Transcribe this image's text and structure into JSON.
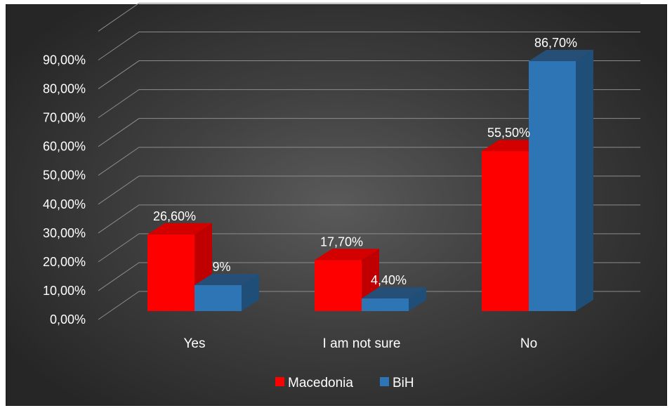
{
  "chart_data": {
    "type": "bar",
    "title": "",
    "categories": [
      "Yes",
      "I am  not sure",
      "No"
    ],
    "series": [
      {
        "name": "Macedonia",
        "values": [
          26.6,
          17.7,
          55.5
        ],
        "labels": [
          "26,60%",
          "17,70%",
          "55,50%"
        ],
        "color": "#ff0000"
      },
      {
        "name": "BiH",
        "values": [
          9,
          4.4,
          86.7
        ],
        "labels": [
          "9%",
          "4,40%",
          "86,70%"
        ],
        "color": "#2e75b6"
      }
    ],
    "y_ticks": [
      "0,00%",
      "10,00%",
      "20,00%",
      "30,00%",
      "40,00%",
      "50,00%",
      "60,00%",
      "70,00%",
      "80,00%",
      "90,00%"
    ],
    "ylim": [
      0,
      100
    ],
    "grid": true,
    "legend": "bottom",
    "three_d": true
  }
}
